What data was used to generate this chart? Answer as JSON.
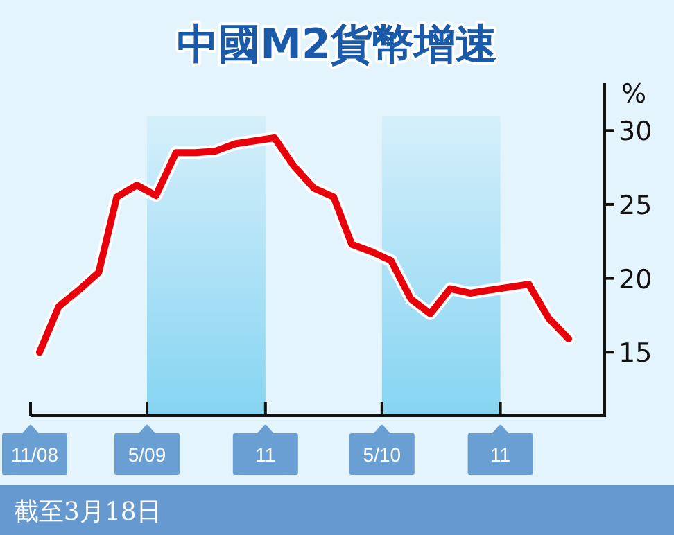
{
  "chart_data": {
    "type": "line",
    "title": "中國M2貨幣增速",
    "ylabel": "%",
    "x": [
      "2008-11-15",
      "2008-12-15",
      "2009-01-15",
      "2009-02-15",
      "2009-03-15",
      "2009-04-15",
      "2009-05-15",
      "2009-06-15",
      "2009-07-15",
      "2009-08-15",
      "2009-09-15",
      "2009-10-15",
      "2009-11-15",
      "2009-12-15",
      "2010-01-15",
      "2010-02-15",
      "2010-03-15",
      "2010-04-15",
      "2010-05-15",
      "2010-06-15",
      "2010-07-15",
      "2010-08-15",
      "2010-09-15",
      "2010-10-15",
      "2010-11-15",
      "2010-12-15",
      "2011-01-15",
      "2011-02-15"
    ],
    "series": [
      {
        "color": "#e8000a",
        "values": [
          15.0,
          18.1,
          19.2,
          20.4,
          25.5,
          26.3,
          25.6,
          28.5,
          28.5,
          28.6,
          29.1,
          29.3,
          29.5,
          27.6,
          26.1,
          25.5,
          22.3,
          21.8,
          21.2,
          18.6,
          17.6,
          19.3,
          19.0,
          19.2,
          19.4,
          19.6,
          17.3,
          15.9
        ]
      }
    ],
    "xlim": [
      "2008-11-01",
      "2011-04-12"
    ],
    "xticks": [
      {
        "value": "2008-11-01",
        "label": "11/08"
      },
      {
        "value": "2009-05-01",
        "label": "5/09"
      },
      {
        "value": "2009-11-01",
        "label": "11"
      },
      {
        "value": "2010-05-01",
        "label": "5/10"
      },
      {
        "value": "2010-11-01",
        "label": "11"
      }
    ],
    "ylim": [
      10.7,
      33.2
    ],
    "yticks": [
      15,
      20,
      25,
      30
    ],
    "bands": [
      {
        "axis": "x",
        "from": "2009-05-01",
        "to": "2009-11-01",
        "color": "#85d4f2"
      },
      {
        "axis": "x",
        "from": "2010-05-01",
        "to": "2010-11-01",
        "color": "#85d4f2"
      }
    ],
    "grid": false,
    "marker": "none",
    "line_style": "solid",
    "annotations": [
      "截至3月18日"
    ]
  }
}
